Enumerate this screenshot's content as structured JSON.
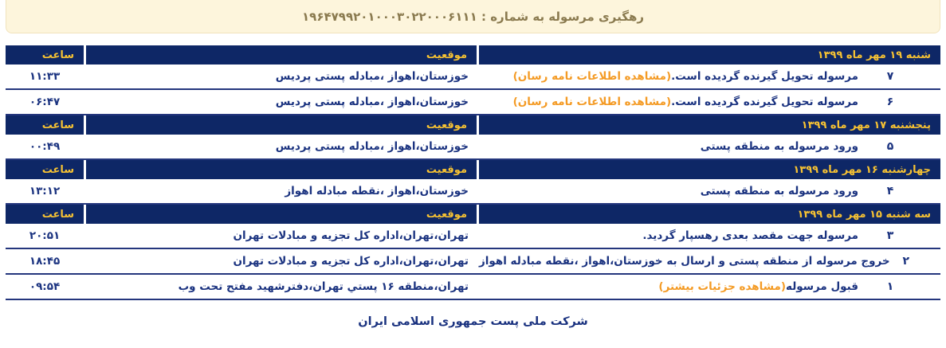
{
  "colors": {
    "navy": "#0e2766",
    "gold_header_text": "#f6c233",
    "orange_link": "#f49b25",
    "cream_banner": "#fdf5dc",
    "text_navy": "#1b3380",
    "title_brown": "#8a7a4f"
  },
  "header": {
    "title_label": "رهگیری مرسوله به شماره :",
    "tracking_number": "۱۹۶۴۷۹۹۲۰۱۰۰۰۳۰۲۲۰۰۰۶۱۱۱"
  },
  "table": {
    "columns": {
      "time_label": "ساعت",
      "location_label": "موقعیت"
    },
    "sections": [
      {
        "date": "شنبه ۱۹ مهر ماه ۱۳۹۹",
        "rows": [
          {
            "num": "۷",
            "status": "مرسوله تحویل گیرنده گردیده است.",
            "link": "(مشاهده اطلاعات نامه رسان)",
            "location": "خوزستان،اهواز ،مبادله پستی پردیس",
            "time": "۱۱:۳۳"
          },
          {
            "num": "۶",
            "status": "مرسوله تحویل گیرنده گردیده است.",
            "link": "(مشاهده اطلاعات نامه رسان)",
            "location": "خوزستان،اهواز ،مبادله پستی پردیس",
            "time": "۰۶:۴۷"
          }
        ]
      },
      {
        "date": "پنجشنبه ۱۷ مهر ماه ۱۳۹۹",
        "rows": [
          {
            "num": "۵",
            "status": "ورود مرسوله به منطقه پستی",
            "link": "",
            "location": "خوزستان،اهواز ،مبادله پستی پردیس",
            "time": "۰۰:۴۹"
          }
        ]
      },
      {
        "date": "چهارشنبه ۱۶ مهر ماه ۱۳۹۹",
        "rows": [
          {
            "num": "۴",
            "status": "ورود مرسوله به منطقه پستی",
            "link": "",
            "location": "خوزستان،اهواز ،نقطه مبادله اهواز",
            "time": "۱۳:۱۲"
          }
        ]
      },
      {
        "date": "سه شنبه ۱۵ مهر ماه ۱۳۹۹",
        "rows": [
          {
            "num": "۳",
            "status": "مرسوله جهت مقصد بعدی رهسپار گردید.",
            "link": "",
            "location": "تهران،تهران،اداره کل تجزیه و مبادلات تهران",
            "time": "۲۰:۵۱"
          },
          {
            "num": "۲",
            "status": "خروج مرسوله از منطقه پستی و ارسال به خوزستان،اهواز ،نقطه مبادله اهواز",
            "link": "",
            "location": "تهران،تهران،اداره کل تجزیه و مبادلات تهران",
            "time": "۱۸:۴۵"
          },
          {
            "num": "۱",
            "status": "قبول مرسوله",
            "link": "(مشاهده جزئیات بیشتر)",
            "location": "تهران،منطقه ۱۶ پستي تهران،دفترشهید مفتح تحت وب",
            "time": "۰۹:۵۴"
          }
        ]
      }
    ]
  },
  "footer": {
    "company": "شرکت ملی پست جمهوری اسلامی ایران"
  }
}
